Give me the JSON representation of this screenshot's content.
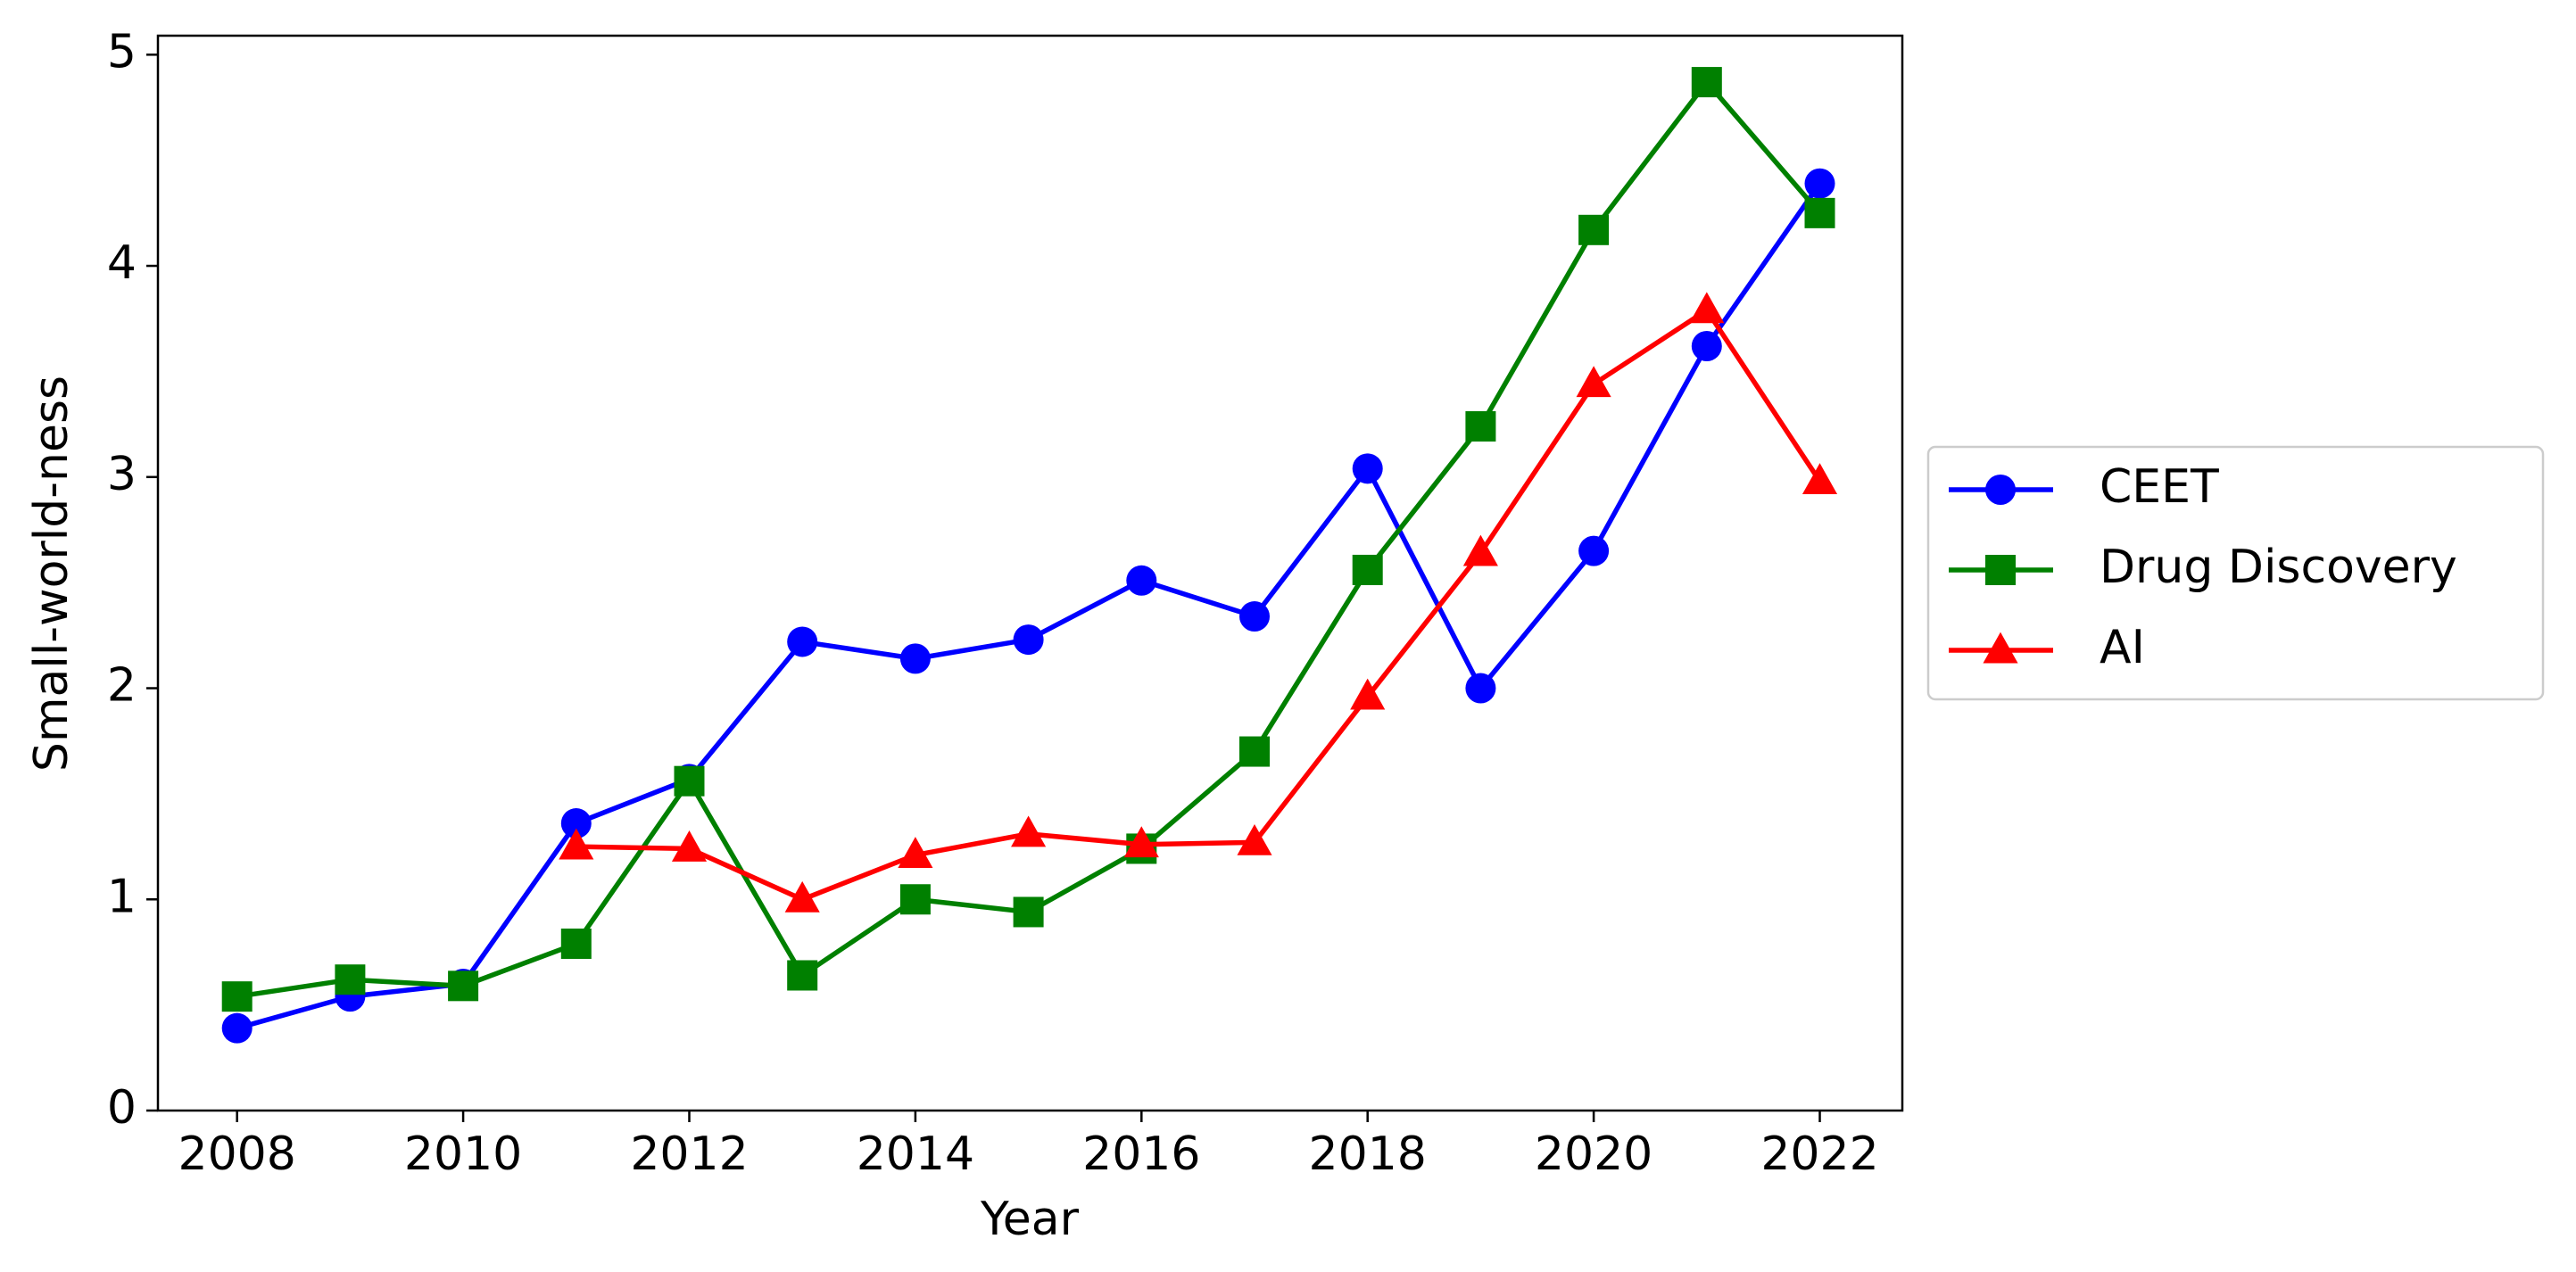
{
  "chart_data": {
    "type": "line",
    "x_label": "Year",
    "y_label": "Small-world-ness",
    "x": [
      2008,
      2009,
      2010,
      2011,
      2012,
      2013,
      2014,
      2015,
      2016,
      2017,
      2018,
      2019,
      2020,
      2021,
      2022
    ],
    "series": [
      {
        "name": "CEET",
        "color": "#0000ff",
        "marker": "circle",
        "values": [
          0.39,
          0.54,
          0.6,
          1.36,
          1.57,
          2.22,
          2.14,
          2.23,
          2.51,
          2.34,
          3.04,
          2.0,
          2.65,
          3.62,
          4.39
        ]
      },
      {
        "name": "Drug Discovery",
        "color": "#008000",
        "marker": "square",
        "values": [
          0.54,
          0.62,
          0.59,
          0.79,
          1.56,
          0.64,
          1.0,
          0.94,
          1.24,
          1.7,
          2.56,
          3.24,
          4.17,
          4.87,
          4.25
        ]
      },
      {
        "name": "AI",
        "color": "#ff0000",
        "marker": "triangle",
        "values": [
          null,
          null,
          null,
          1.25,
          1.24,
          1.0,
          1.21,
          1.31,
          1.26,
          1.27,
          1.96,
          2.64,
          3.44,
          3.79,
          2.98
        ]
      }
    ],
    "xlim": [
      2007.3,
      2022.73
    ],
    "ylim": [
      0,
      5.09
    ],
    "xticks": [
      2008,
      2010,
      2012,
      2014,
      2016,
      2018,
      2020,
      2022
    ],
    "yticks": [
      0,
      1,
      2,
      3,
      4,
      5
    ],
    "grid": false,
    "legend": "outside-right"
  }
}
